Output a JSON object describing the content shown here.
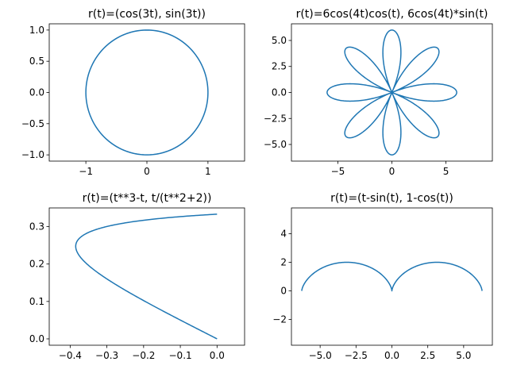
{
  "figure": {
    "background": "#ffffff",
    "line_color": "#1f77b4"
  },
  "chart_data": [
    {
      "type": "line",
      "title": "r(t)=(cos(3t), sin(3t))",
      "curve": "circle",
      "t_range": [
        0,
        6.2832
      ],
      "samples": 400,
      "xlim": [
        -1.6,
        1.6
      ],
      "ylim": [
        -1.1,
        1.1
      ],
      "xticks": [
        -1,
        0,
        1
      ],
      "xtick_labels": [
        "−1",
        "0",
        "1"
      ],
      "yticks": [
        -1.0,
        -0.5,
        0.0,
        0.5,
        1.0
      ],
      "ytick_labels": [
        "−1.0",
        "−0.5",
        "0.0",
        "0.5",
        "1.0"
      ],
      "legend": "none",
      "grid": false
    },
    {
      "type": "line",
      "title": "r(t)=6cos(4t)cos(t), 6cos(4t)*sin(t)",
      "curve": "rose",
      "t_range": [
        0,
        6.2832
      ],
      "samples": 800,
      "xlim": [
        -9.3,
        9.3
      ],
      "ylim": [
        -6.6,
        6.6
      ],
      "xticks": [
        -5,
        0,
        5
      ],
      "xtick_labels": [
        "−5",
        "0",
        "5"
      ],
      "yticks": [
        -5.0,
        -2.5,
        0.0,
        2.5,
        5.0
      ],
      "ytick_labels": [
        "−5.0",
        "−2.5",
        "0.0",
        "2.5",
        "5.0"
      ],
      "legend": "none",
      "grid": false
    },
    {
      "type": "line",
      "title": "r(t)=(t**3-t, t/(t**2+2))",
      "curve": "cubic",
      "t_range": [
        0,
        1
      ],
      "samples": 300,
      "xlim": [
        -0.457,
        0.075
      ],
      "ylim": [
        -0.017,
        0.35
      ],
      "xticks": [
        -0.4,
        -0.3,
        -0.2,
        -0.1,
        0.0
      ],
      "xtick_labels": [
        "−0.4",
        "−0.3",
        "−0.2",
        "−0.1",
        "0.0"
      ],
      "yticks": [
        0.0,
        0.1,
        0.2,
        0.3
      ],
      "ytick_labels": [
        "0.0",
        "0.1",
        "0.2",
        "0.3"
      ],
      "legend": "none",
      "grid": false
    },
    {
      "type": "line",
      "title": "r(t)=(t-sin(t), 1-cos(t))",
      "curve": "cycloid",
      "t_range": [
        -6.2832,
        6.2832
      ],
      "samples": 600,
      "xlim": [
        -7.0,
        7.0
      ],
      "ylim": [
        -3.8,
        5.8
      ],
      "xticks": [
        -5.0,
        -2.5,
        0.0,
        2.5,
        5.0
      ],
      "xtick_labels": [
        "−5.0",
        "−2.5",
        "0.0",
        "2.5",
        "5.0"
      ],
      "yticks": [
        -2,
        0,
        2,
        4
      ],
      "ytick_labels": [
        "−2",
        "0",
        "2",
        "4"
      ],
      "legend": "none",
      "grid": false
    }
  ]
}
